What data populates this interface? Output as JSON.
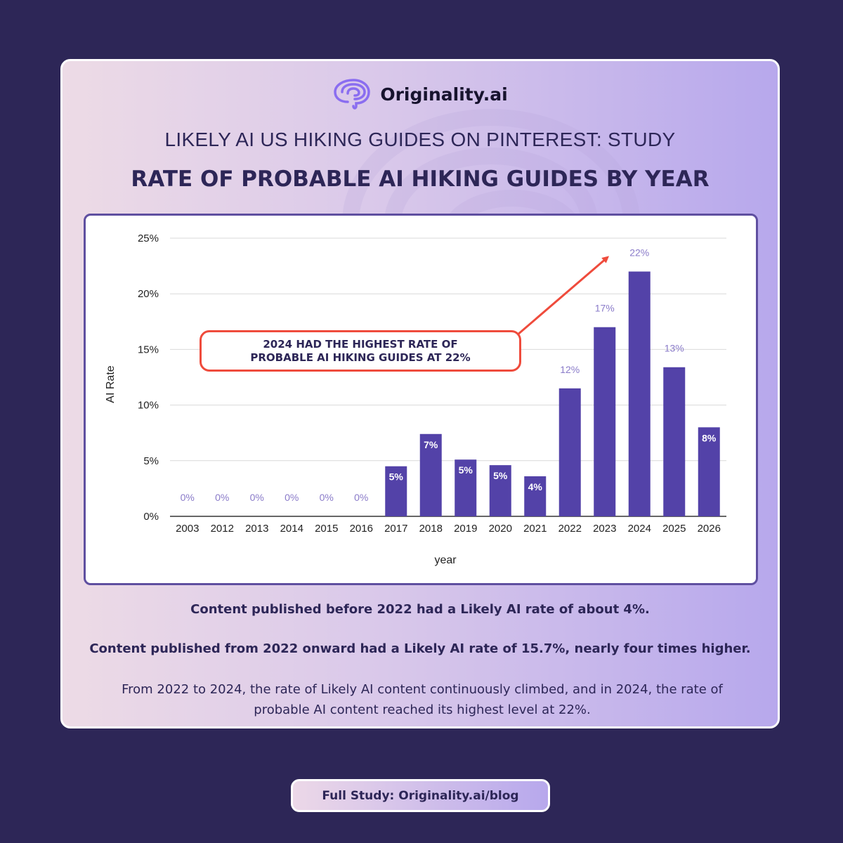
{
  "brand": {
    "name": "Originality.ai",
    "logo_icon": "brain-icon"
  },
  "header": {
    "subtitle": "LIKELY AI US HIKING GUIDES ON PINTEREST: STUDY",
    "title": "RATE OF PROBABLE AI HIKING GUIDES BY YEAR"
  },
  "chart_data": {
    "type": "bar",
    "title": "",
    "xlabel": "year",
    "ylabel": "AI Rate",
    "ylim": [
      0,
      25
    ],
    "yticks": [
      "0%",
      "5%",
      "10%",
      "15%",
      "20%",
      "25%"
    ],
    "categories": [
      "2003",
      "2012",
      "2013",
      "2014",
      "2015",
      "2016",
      "2017",
      "2018",
      "2019",
      "2020",
      "2021",
      "2022",
      "2023",
      "2024",
      "2025",
      "2026"
    ],
    "values": [
      0,
      0,
      0,
      0,
      0,
      0,
      4.5,
      7.4,
      5.1,
      4.6,
      3.6,
      11.5,
      17,
      22,
      13.4,
      8
    ],
    "data_labels": [
      "0%",
      "0%",
      "0%",
      "0%",
      "0%",
      "0%",
      "5%",
      "7%",
      "5%",
      "5%",
      "4%",
      "12%",
      "17%",
      "22%",
      "13%",
      "8%"
    ],
    "grid": true,
    "legend": "none",
    "bar_color": "#5342a8",
    "annotation": "2024 HAD THE HIGHEST RATE OF PROBABLE AI HIKING GUIDES AT 22%",
    "annotation_color": "#ef4b3c"
  },
  "notes": {
    "line1": "Content published before 2022 had a Likely AI rate of about 4%.",
    "line2": "Content published from 2022 onward had a Likely AI rate of 15.7%, nearly four times higher.",
    "line3": "From 2022 to 2024, the rate of Likely AI content continuously climbed, and in 2024, the rate of probable AI content reached its highest level at 22%."
  },
  "footer": {
    "link_text": "Full Study: Originality.ai/blog"
  }
}
